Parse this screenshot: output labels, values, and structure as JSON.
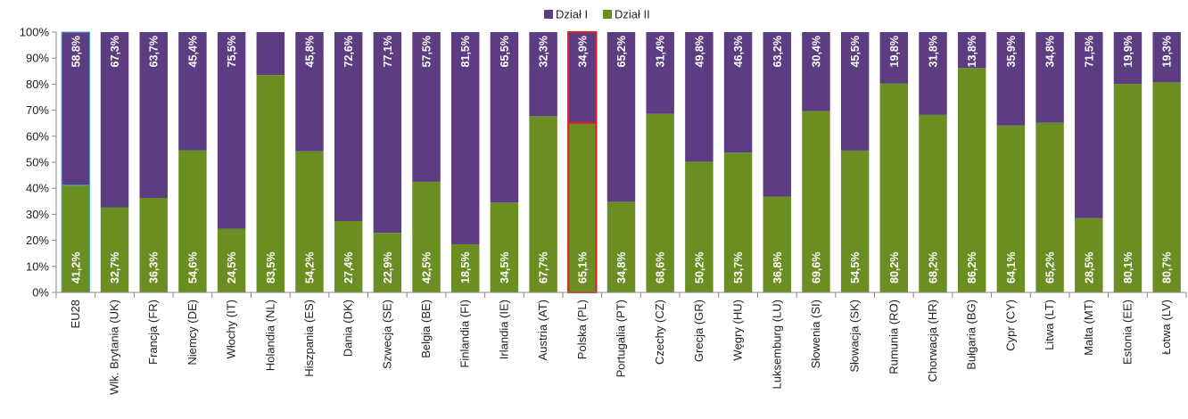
{
  "chart_data": {
    "type": "bar",
    "stacked": true,
    "normalized_percent": true,
    "categories": [
      "EU28",
      "Wlk. Brytania (UK)",
      "Francja (FR)",
      "Niemcy (DE)",
      "Włochy (IT)",
      "Holandia (NL)",
      "Hiszpania (ES)",
      "Dania (DK)",
      "Szwecja (SE)",
      "Belgia (BE)",
      "Finlandia (FI)",
      "Irlandia (IE)",
      "Austria (AT)",
      "Polska (PL)",
      "Portugalia (PT)",
      "Czechy (CZ)",
      "Grecja (GR)",
      "Węgry (HU)",
      "Luksemburg (LU)",
      "Słowenia (SI)",
      "Słowacja (SK)",
      "Rumunia (RO)",
      "Chorwacja (HR)",
      "Bułgaria (BG)",
      "Cypr (CY)",
      "Litwa (LT)",
      "Malta (MT)",
      "Estonia (EE)",
      "Łotwa (LV)"
    ],
    "series": [
      {
        "name": "Dział II",
        "color": "#6b8e23",
        "values": [
          41.2,
          32.7,
          36.3,
          54.6,
          24.5,
          83.5,
          54.2,
          27.4,
          22.9,
          42.5,
          18.5,
          34.5,
          67.7,
          65.1,
          34.8,
          68.6,
          50.2,
          53.7,
          36.8,
          69.6,
          54.5,
          80.2,
          68.2,
          86.2,
          64.1,
          65.2,
          28.5,
          80.1,
          80.7
        ],
        "labels": [
          "41,2%",
          "32,7%",
          "36,3%",
          "54,6%",
          "24,5%",
          "83,5%",
          "54,2%",
          "27,4%",
          "22,9%",
          "42,5%",
          "18,5%",
          "34,5%",
          "67,7%",
          "65,1%",
          "34,8%",
          "68,6%",
          "50,2%",
          "53,7%",
          "36,8%",
          "69,6%",
          "54,5%",
          "80,2%",
          "68,2%",
          "86,2%",
          "64,1%",
          "65,2%",
          "28,5%",
          "80,1%",
          "80,7%"
        ]
      },
      {
        "name": "Dział I",
        "color": "#5c3d82",
        "values": [
          58.8,
          67.3,
          63.7,
          45.4,
          75.5,
          16.5,
          45.8,
          72.6,
          77.1,
          57.5,
          81.5,
          65.5,
          32.3,
          34.9,
          65.2,
          31.4,
          49.8,
          46.3,
          63.2,
          30.4,
          45.5,
          19.8,
          31.8,
          13.8,
          35.9,
          34.8,
          71.5,
          19.9,
          19.3
        ],
        "labels": [
          "58,8%",
          "67,3%",
          "63,7%",
          "45,4%",
          "75,5%",
          "16,5%",
          "45,8%",
          "72,6%",
          "77,1%",
          "57,5%",
          "81,5%",
          "65,5%",
          "32,3%",
          "34,9%",
          "65,2%",
          "31,4%",
          "49,8%",
          "46,3%",
          "63,2%",
          "30,4%",
          "45,5%",
          "19,8%",
          "31,8%",
          "13,8%",
          "35,9%",
          "34,8%",
          "71,5%",
          "19,9%",
          "19,3%"
        ]
      }
    ],
    "hidden_value_labels": {
      "Dział II": [],
      "Dział I": [
        "Holandia (NL)"
      ]
    },
    "legend": {
      "position": "top-center",
      "order": [
        "Dział I",
        "Dział II"
      ]
    },
    "highlighted_category": "Polska (PL)",
    "highlight_color": "#e02020",
    "first_bar_outline_color": "#4fa3d8",
    "y_ticks": [
      "0%",
      "10%",
      "20%",
      "30%",
      "40%",
      "50%",
      "60%",
      "70%",
      "80%",
      "90%",
      "100%"
    ],
    "ylim": [
      0,
      100
    ],
    "grid": false,
    "title": "",
    "xlabel": "",
    "ylabel": ""
  }
}
